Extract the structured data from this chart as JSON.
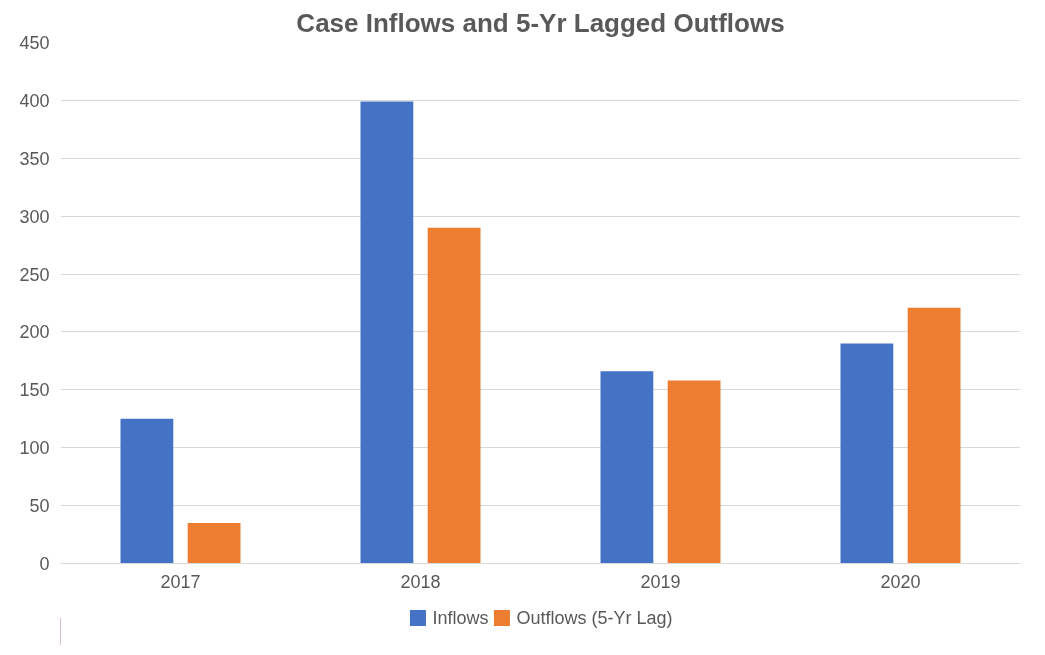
{
  "chart_data": {
    "type": "bar",
    "title": "Case Inflows and 5-Yr Lagged Outflows",
    "categories": [
      "2017",
      "2018",
      "2019",
      "2020"
    ],
    "series": [
      {
        "name": "Inflows",
        "color": "#4472c4",
        "values": [
          125,
          399,
          166,
          190
        ]
      },
      {
        "name": "Outflows (5-Yr Lag)",
        "color": "#ed7d31",
        "values": [
          35,
          290,
          158,
          221
        ]
      }
    ],
    "ylim": [
      0,
      450
    ],
    "yticks": [
      0,
      50,
      100,
      150,
      200,
      250,
      300,
      350,
      400,
      450
    ],
    "grid": "y",
    "legend": "bottom"
  }
}
